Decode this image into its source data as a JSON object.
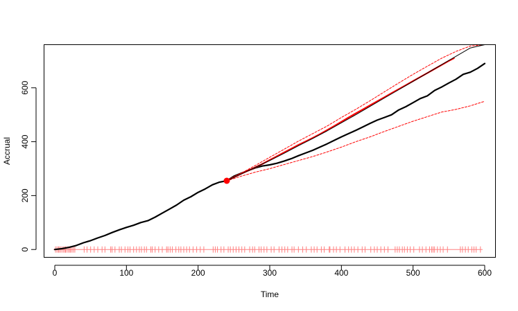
{
  "chart_data": {
    "type": "line",
    "title": "",
    "xlabel": "Time",
    "ylabel": "Accrual",
    "xlim": [
      -15,
      615
    ],
    "ylim": [
      -29,
      760
    ],
    "x_ticks": [
      0,
      100,
      200,
      300,
      400,
      500,
      600
    ],
    "y_ticks": [
      0,
      200,
      400,
      600
    ],
    "grid": false,
    "legend": "none",
    "colors": {
      "observed": "#000000",
      "predicted": "#ff0000",
      "interval": "#ff0000",
      "events": "#ff8080"
    },
    "series": [
      {
        "style": "solid-black",
        "x": [
          0,
          10,
          20,
          30,
          40,
          50,
          60,
          70,
          80,
          90,
          100,
          110,
          120,
          130,
          140,
          150,
          160,
          170,
          180,
          190,
          200,
          210,
          220,
          230,
          240
        ],
        "y": [
          0,
          3,
          8,
          15,
          25,
          33,
          43,
          52,
          63,
          73,
          82,
          90,
          100,
          107,
          120,
          135,
          150,
          165,
          183,
          196,
          212,
          225,
          240,
          250,
          255
        ]
      },
      {
        "style": "solid-black",
        "x": [
          240,
          250,
          260,
          270,
          280,
          290,
          300,
          310,
          320,
          330,
          340,
          350,
          360,
          370,
          380,
          390,
          400,
          410,
          420,
          430,
          440,
          450,
          460,
          470,
          480,
          490,
          500,
          510,
          520,
          530,
          540,
          550,
          560,
          570,
          580,
          590,
          600
        ],
        "y": [
          255,
          272,
          283,
          293,
          303,
          310,
          314,
          320,
          328,
          337,
          348,
          358,
          368,
          380,
          392,
          405,
          418,
          430,
          442,
          455,
          468,
          480,
          490,
          500,
          518,
          530,
          545,
          560,
          570,
          590,
          603,
          618,
          632,
          650,
          658,
          672,
          690
        ]
      },
      {
        "style": "solid-red",
        "x": [
          240,
          250,
          260,
          270,
          280,
          290,
          300,
          310,
          320,
          330,
          340,
          350,
          360,
          370,
          380,
          390,
          400,
          410,
          420,
          430,
          440,
          450,
          460,
          470,
          480,
          490,
          500,
          510,
          520,
          530,
          540,
          550,
          557
        ],
        "y": [
          255,
          268,
          281,
          293,
          305,
          318,
          332,
          346,
          360,
          374,
          388,
          401,
          414,
          428,
          443,
          458,
          474,
          490,
          505,
          520,
          535,
          550,
          565,
          580,
          595,
          610,
          625,
          640,
          655,
          670,
          685,
          700,
          710
        ]
      },
      {
        "style": "dashed-red",
        "x": [
          240,
          260,
          280,
          300,
          320,
          340,
          360,
          380,
          400,
          420,
          440,
          460,
          480,
          500,
          520,
          540,
          560,
          580,
          600
        ],
        "y": [
          255,
          272,
          287,
          300,
          315,
          330,
          345,
          362,
          380,
          400,
          418,
          438,
          457,
          476,
          493,
          510,
          520,
          533,
          550
        ]
      },
      {
        "style": "dashed-red",
        "x": [
          240,
          260,
          280,
          300,
          320,
          340,
          360,
          380,
          400,
          420,
          440,
          460,
          480,
          500,
          520,
          540,
          560,
          580,
          600
        ],
        "y": [
          255,
          283,
          312,
          342,
          372,
          402,
          430,
          458,
          490,
          520,
          552,
          585,
          618,
          650,
          680,
          710,
          735,
          755,
          760
        ]
      },
      {
        "style": "dashed-red",
        "x": [
          240,
          260,
          280,
          300,
          320,
          340,
          360,
          380,
          400,
          420,
          440,
          460,
          480,
          500,
          520,
          540,
          560,
          580,
          600
        ],
        "y": [
          255,
          280,
          305,
          330,
          357,
          385,
          412,
          440,
          470,
          500,
          531,
          562,
          593,
          624,
          655,
          686,
          717,
          748,
          760
        ]
      }
    ],
    "series_display": [
      {
        "index": 0,
        "stroke": "#000000",
        "width": 2.2
      },
      {
        "index": 1,
        "stroke": "#000000",
        "width": 2.2
      },
      {
        "index": 2,
        "stroke": "#ff0000",
        "width": 2.2
      },
      {
        "index": 3,
        "stroke": "#ff0000",
        "width": 1,
        "dash": "3,2"
      },
      {
        "index": 4,
        "stroke": "#ff0000",
        "width": 1,
        "dash": "3,2"
      }
    ],
    "current_point": {
      "x": 240,
      "y": 255
    },
    "event_times": [
      1,
      3,
      5,
      6,
      8,
      10,
      12,
      14,
      15,
      17,
      19,
      21,
      22,
      24,
      26,
      28,
      41,
      45,
      50,
      55,
      60,
      66,
      70,
      78,
      80,
      84,
      90,
      93,
      98,
      102,
      105,
      110,
      114,
      118,
      121,
      125,
      128,
      134,
      136,
      140,
      145,
      150,
      156,
      158,
      161,
      164,
      169,
      173,
      176,
      180,
      184,
      188,
      193,
      198,
      203,
      208,
      221,
      224,
      227,
      232,
      236,
      242,
      245,
      249,
      253,
      257,
      261,
      265,
      272,
      276,
      279,
      285,
      288,
      292,
      296,
      302,
      306,
      313,
      317,
      321,
      325,
      331,
      334,
      340,
      346,
      351,
      358,
      362,
      366,
      372,
      376,
      383,
      384,
      389,
      393,
      398,
      405,
      410,
      414,
      418,
      423,
      429,
      433,
      441,
      446,
      450,
      455,
      460,
      465,
      475,
      478,
      481,
      485,
      488,
      492,
      496,
      501,
      509,
      513,
      518,
      523,
      526,
      528,
      530,
      534,
      538,
      542,
      548,
      566,
      569,
      573,
      577,
      582,
      585,
      588,
      594
    ],
    "event_y": 0
  }
}
